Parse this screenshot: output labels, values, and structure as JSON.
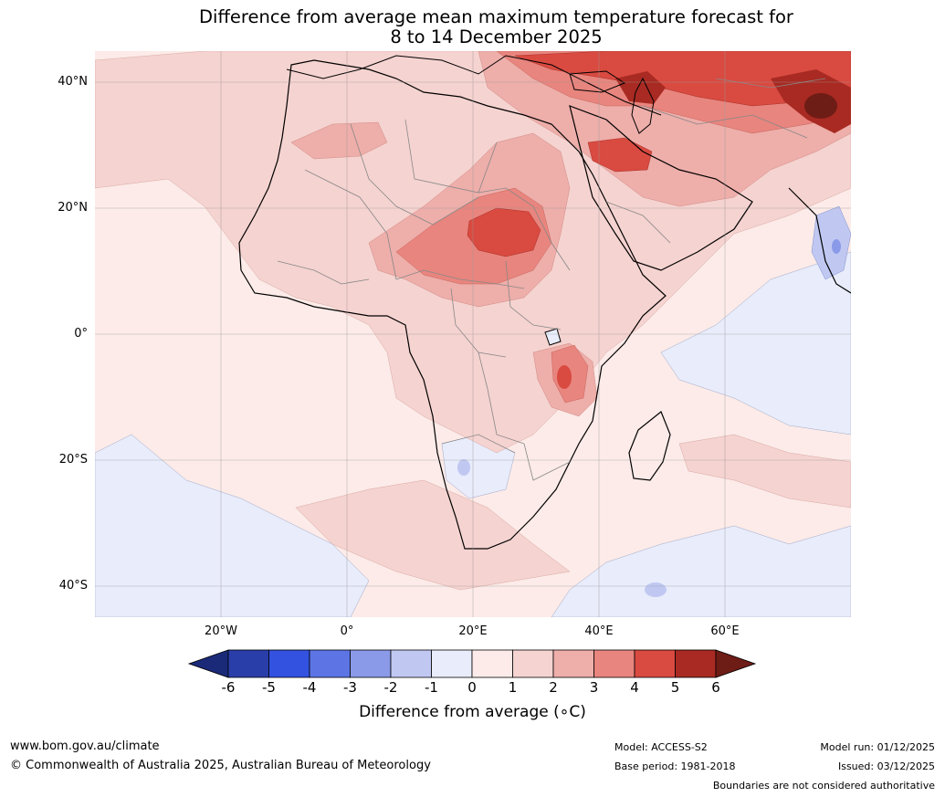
{
  "title": {
    "line1": "Difference from average mean maximum temperature forecast for",
    "line2": "8 to 14 December 2025"
  },
  "map": {
    "type": "anomaly-map",
    "region": "Africa",
    "lat_labels": [
      "40°N",
      "20°N",
      "0°",
      "20°S",
      "40°S"
    ],
    "lon_labels": [
      "20°W",
      "0°",
      "20°E",
      "40°E",
      "60°E"
    ],
    "extent": {
      "lon": [
        -40,
        80
      ],
      "lat": [
        -45,
        45
      ]
    }
  },
  "colorbar": {
    "label": "Difference from average (∘C)",
    "ticks": [
      "-6",
      "-5",
      "-4",
      "-3",
      "-2",
      "-1",
      "0",
      "1",
      "2",
      "3",
      "4",
      "5",
      "6"
    ],
    "colors": [
      "#1a2a78",
      "#2a3eaa",
      "#3352e0",
      "#5c74e4",
      "#8a9ae8",
      "#c0c8f2",
      "#e8ecfb",
      "#fcebe8",
      "#f5d3d0",
      "#eeaeaa",
      "#e8857e",
      "#d94a40",
      "#a82a22",
      "#6e1c16"
    ]
  },
  "footer": {
    "website": "www.bom.gov.au/climate",
    "copyright": "© Commonwealth of Australia 2025, Australian Bureau of Meteorology",
    "model": "Model: ACCESS-S2",
    "base_period": "Base period: 1981-2018",
    "model_run": "Model run: 01/12/2025",
    "issued": "Issued: 03/12/2025",
    "disclaimer": "Boundaries are not considered authoritative"
  }
}
